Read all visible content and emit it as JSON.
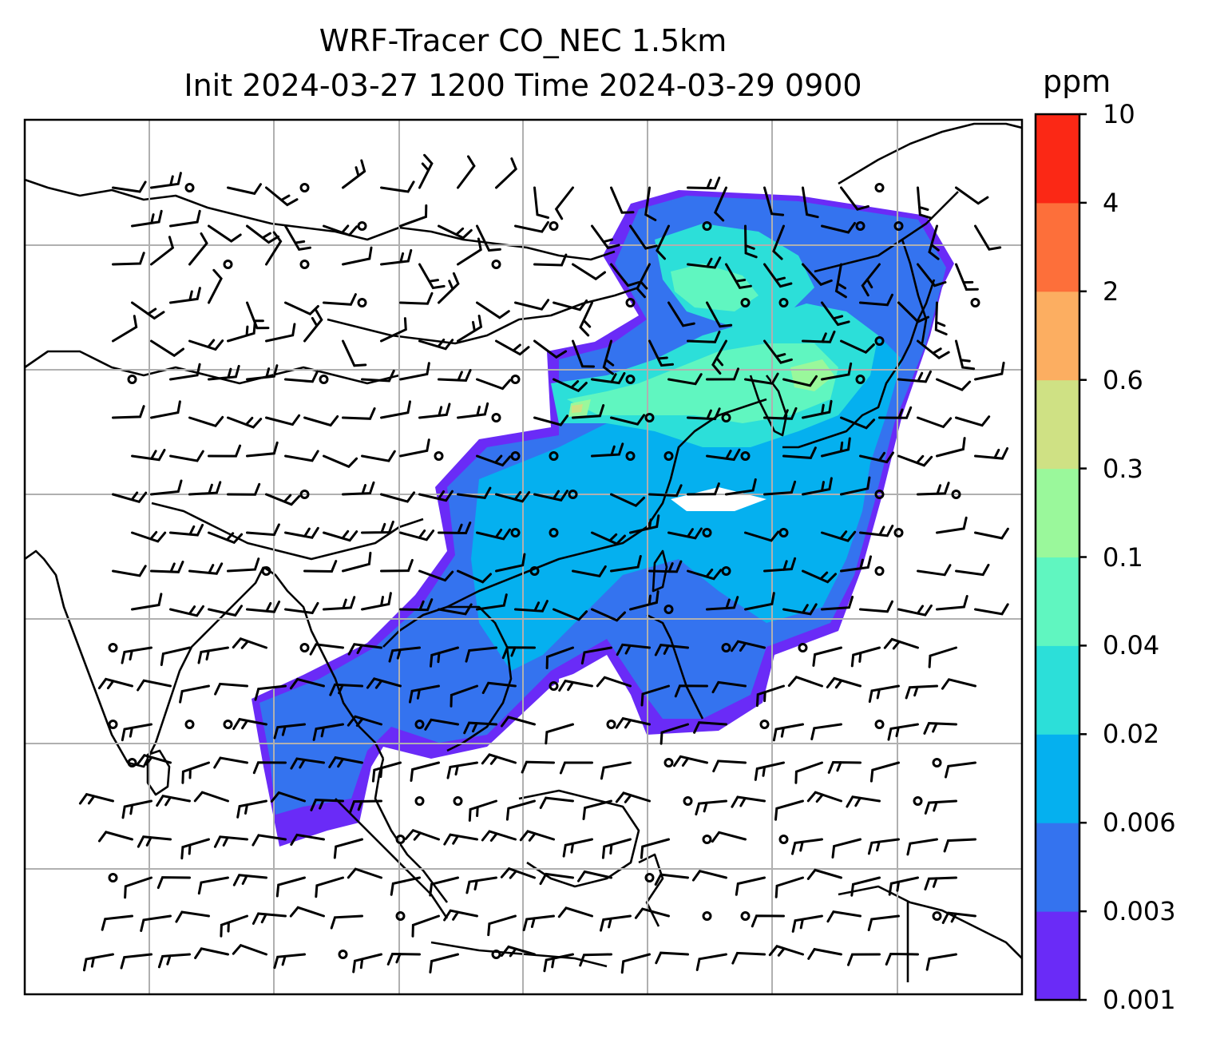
{
  "title": {
    "line1": "WRF-Tracer CO_NEC 1.5km",
    "line2": "Init 2024-03-27 1200 Time 2024-03-29 0900"
  },
  "colorbar": {
    "unit": "ppm",
    "levels": [
      "0.001",
      "0.003",
      "0.006",
      "0.02",
      "0.04",
      "0.1",
      "0.3",
      "0.6",
      "2",
      "4",
      "10"
    ],
    "colors": [
      "#6a2bf7",
      "#3473ef",
      "#05b0ef",
      "#2cdfd9",
      "#60f6c0",
      "#9af89b",
      "#cfe184",
      "#fcae61",
      "#fd6f3a",
      "#fb2815"
    ]
  },
  "map": {
    "type": "filled-contour with wind barbs",
    "grid": true,
    "coastline_color": "#000000",
    "grid_color": "#b0b0b0"
  }
}
